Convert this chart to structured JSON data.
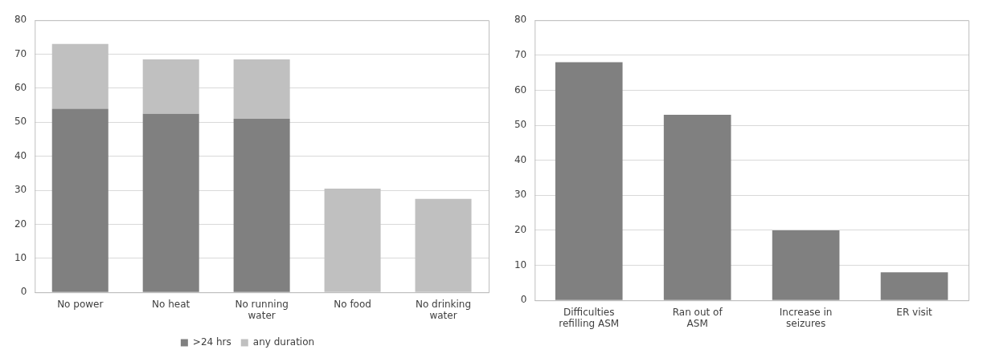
{
  "chart_data": [
    {
      "type": "bar",
      "stacked": true,
      "categories": [
        "No power",
        "No heat",
        "No running water",
        "No food",
        "No drinking water"
      ],
      "series": [
        {
          "name": ">24 hrs",
          "color": "#808080",
          "values": [
            54,
            52.5,
            51,
            0,
            0
          ]
        },
        {
          "name": "any duration",
          "color": "#c0c0c0",
          "values": [
            19,
            16,
            17.5,
            30.5,
            27.5
          ]
        }
      ],
      "ylim": [
        0,
        80
      ],
      "yticks": [
        0,
        10,
        20,
        30,
        40,
        50,
        60,
        70,
        80
      ],
      "grid": "y",
      "legend": "bottom"
    },
    {
      "type": "bar",
      "categories": [
        "Difficulties refilling ASM",
        "Ran out of ASM",
        "Increase in seizures",
        "ER visit"
      ],
      "series": [
        {
          "color": "#808080",
          "values": [
            68,
            53,
            20,
            8
          ]
        }
      ],
      "ylim": [
        0,
        80
      ],
      "yticks": [
        0,
        10,
        20,
        30,
        40,
        50,
        60,
        70,
        80
      ],
      "grid": "y"
    }
  ]
}
